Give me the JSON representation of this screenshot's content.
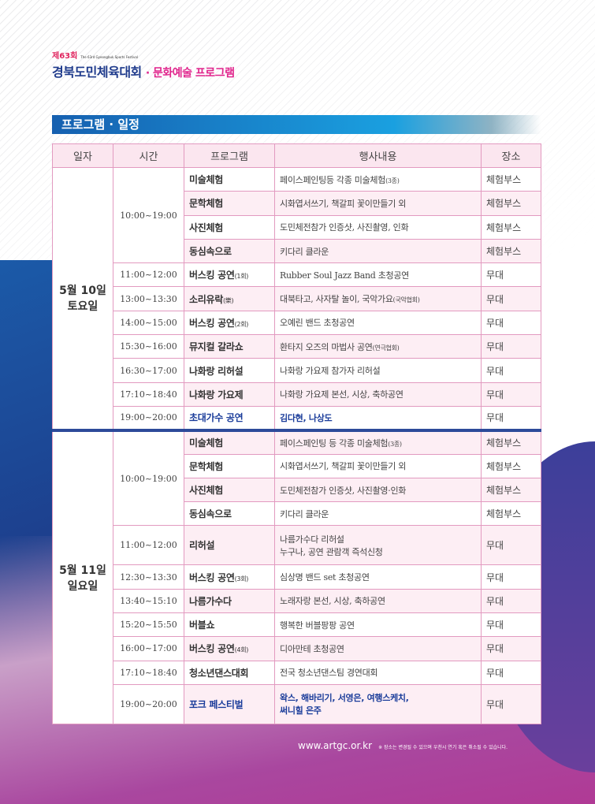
{
  "brand": {
    "edition": "제63회",
    "edition_sub": "The 63rd Gyeongbuk Sports Festival",
    "title": "경북도민체육대회",
    "subtitle": "· 문화예술 프로그램"
  },
  "section_title": "프로그램 · 일정",
  "table": {
    "headers": [
      "일자",
      "시간",
      "프로그램",
      "행사내용",
      "장소"
    ],
    "days": [
      {
        "date": "5월 10일",
        "weekday": "토요일",
        "rows": [
          {
            "time": "10:00~19:00",
            "program": "미술체험",
            "content": "페이스페인팅등 각종 미술체험",
            "content_note": "(3종)",
            "venue": "체험부스"
          },
          {
            "time": "",
            "program": "문학체험",
            "content": "시화엽서쓰기, 책갈피 꽃이만들기 외",
            "venue": "체험부스"
          },
          {
            "time": "",
            "program": "사진체험",
            "content": "도민체전참가 인증샷, 사진촬영, 인화",
            "venue": "체험부스"
          },
          {
            "time": "",
            "program": "동심속으로",
            "content": "키다리 클라운",
            "venue": "체험부스"
          },
          {
            "time": "11:00~12:00",
            "program": "버스킹 공연",
            "program_note": "(1회)",
            "content": "Rubber Soul Jazz Band 초청공연",
            "venue": "무대"
          },
          {
            "time": "13:00~13:30",
            "program": "소리유락",
            "program_note": "(樂)",
            "content": "대북타고, 사자탈 놀이, 국악가요",
            "content_note": "(국악협회)",
            "venue": "무대"
          },
          {
            "time": "14:00~15:00",
            "program": "버스킹 공연",
            "program_note": "(2회)",
            "content": "오예린 밴드 초청공연",
            "venue": "무대"
          },
          {
            "time": "15:30~16:00",
            "program": "뮤지컬 갈라쇼",
            "content": "환타지 오즈의 마법사 공연",
            "content_note": "(연극협회)",
            "venue": "무대"
          },
          {
            "time": "16:30~17:00",
            "program": "나화랑 리허설",
            "content": "나화랑 가요제 참가자 리허설",
            "venue": "무대"
          },
          {
            "time": "17:10~18:40",
            "program": "나화랑 가요제",
            "content": "나화랑 가요제 본선, 시상, 축하공연",
            "venue": "무대"
          },
          {
            "time": "19:00~20:00",
            "program": "초대가수 공연",
            "content": "김다현, 나상도",
            "venue": "무대"
          }
        ]
      },
      {
        "date": "5월 11일",
        "weekday": "일요일",
        "rows": [
          {
            "time": "10:00~19:00",
            "program": "미술체험",
            "content": "페이스페인팅 등 각종 미술체험",
            "content_note": "(3종)",
            "venue": "체험부스"
          },
          {
            "time": "",
            "program": "문학체험",
            "content": "시화엽서쓰기, 책갈피 꽃이만들기 외",
            "venue": "체험부스"
          },
          {
            "time": "",
            "program": "사진체험",
            "content": "도민체전참가 인증샷, 사진촬영·인화",
            "venue": "체험부스"
          },
          {
            "time": "",
            "program": "동심속으로",
            "content": "키다리 클라운",
            "venue": "체험부스"
          },
          {
            "time": "11:00~12:00",
            "program": "리허설",
            "content": "나름가수다 리허설",
            "content2": "누구나, 공연 관람객 즉석신청",
            "venue": "무대"
          },
          {
            "time": "12:30~13:30",
            "program": "버스킹 공연",
            "program_note": "(3회)",
            "content": "심상명 밴드 set 초청공연",
            "venue": "무대"
          },
          {
            "time": "13:40~15:10",
            "program": "나름가수다",
            "content": "노래자랑 본선, 시상, 축하공연",
            "venue": "무대"
          },
          {
            "time": "15:20~15:50",
            "program": "버블쇼",
            "content": "행복한 버블팡팡 공연",
            "venue": "무대"
          },
          {
            "time": "16:00~17:00",
            "program": "버스킹 공연",
            "program_note": "(4회)",
            "content": "디아만테 초청공연",
            "venue": "무대"
          },
          {
            "time": "17:10~18:40",
            "program": "청소년댄스대회",
            "content": "전국 청소년댄스팀 경연대회",
            "venue": "무대"
          },
          {
            "time": "19:00~20:00",
            "program": "포크 페스티벌",
            "content": "왁스, 해바리기, 서영은, 여행스케치,",
            "content2": "써니힐 은주",
            "venue": "무대"
          }
        ]
      }
    ]
  },
  "footer": {
    "url": "www.artgc.or.kr",
    "note": "※ 장소는 변경될 수 있으며 우천시 연기 혹은 취소될 수 있습니다."
  },
  "colors": {
    "brand_blue": "#1f3b8c",
    "brand_pink": "#e0248c",
    "highlight": "#1a3c9a",
    "border": "#e29ac0"
  }
}
